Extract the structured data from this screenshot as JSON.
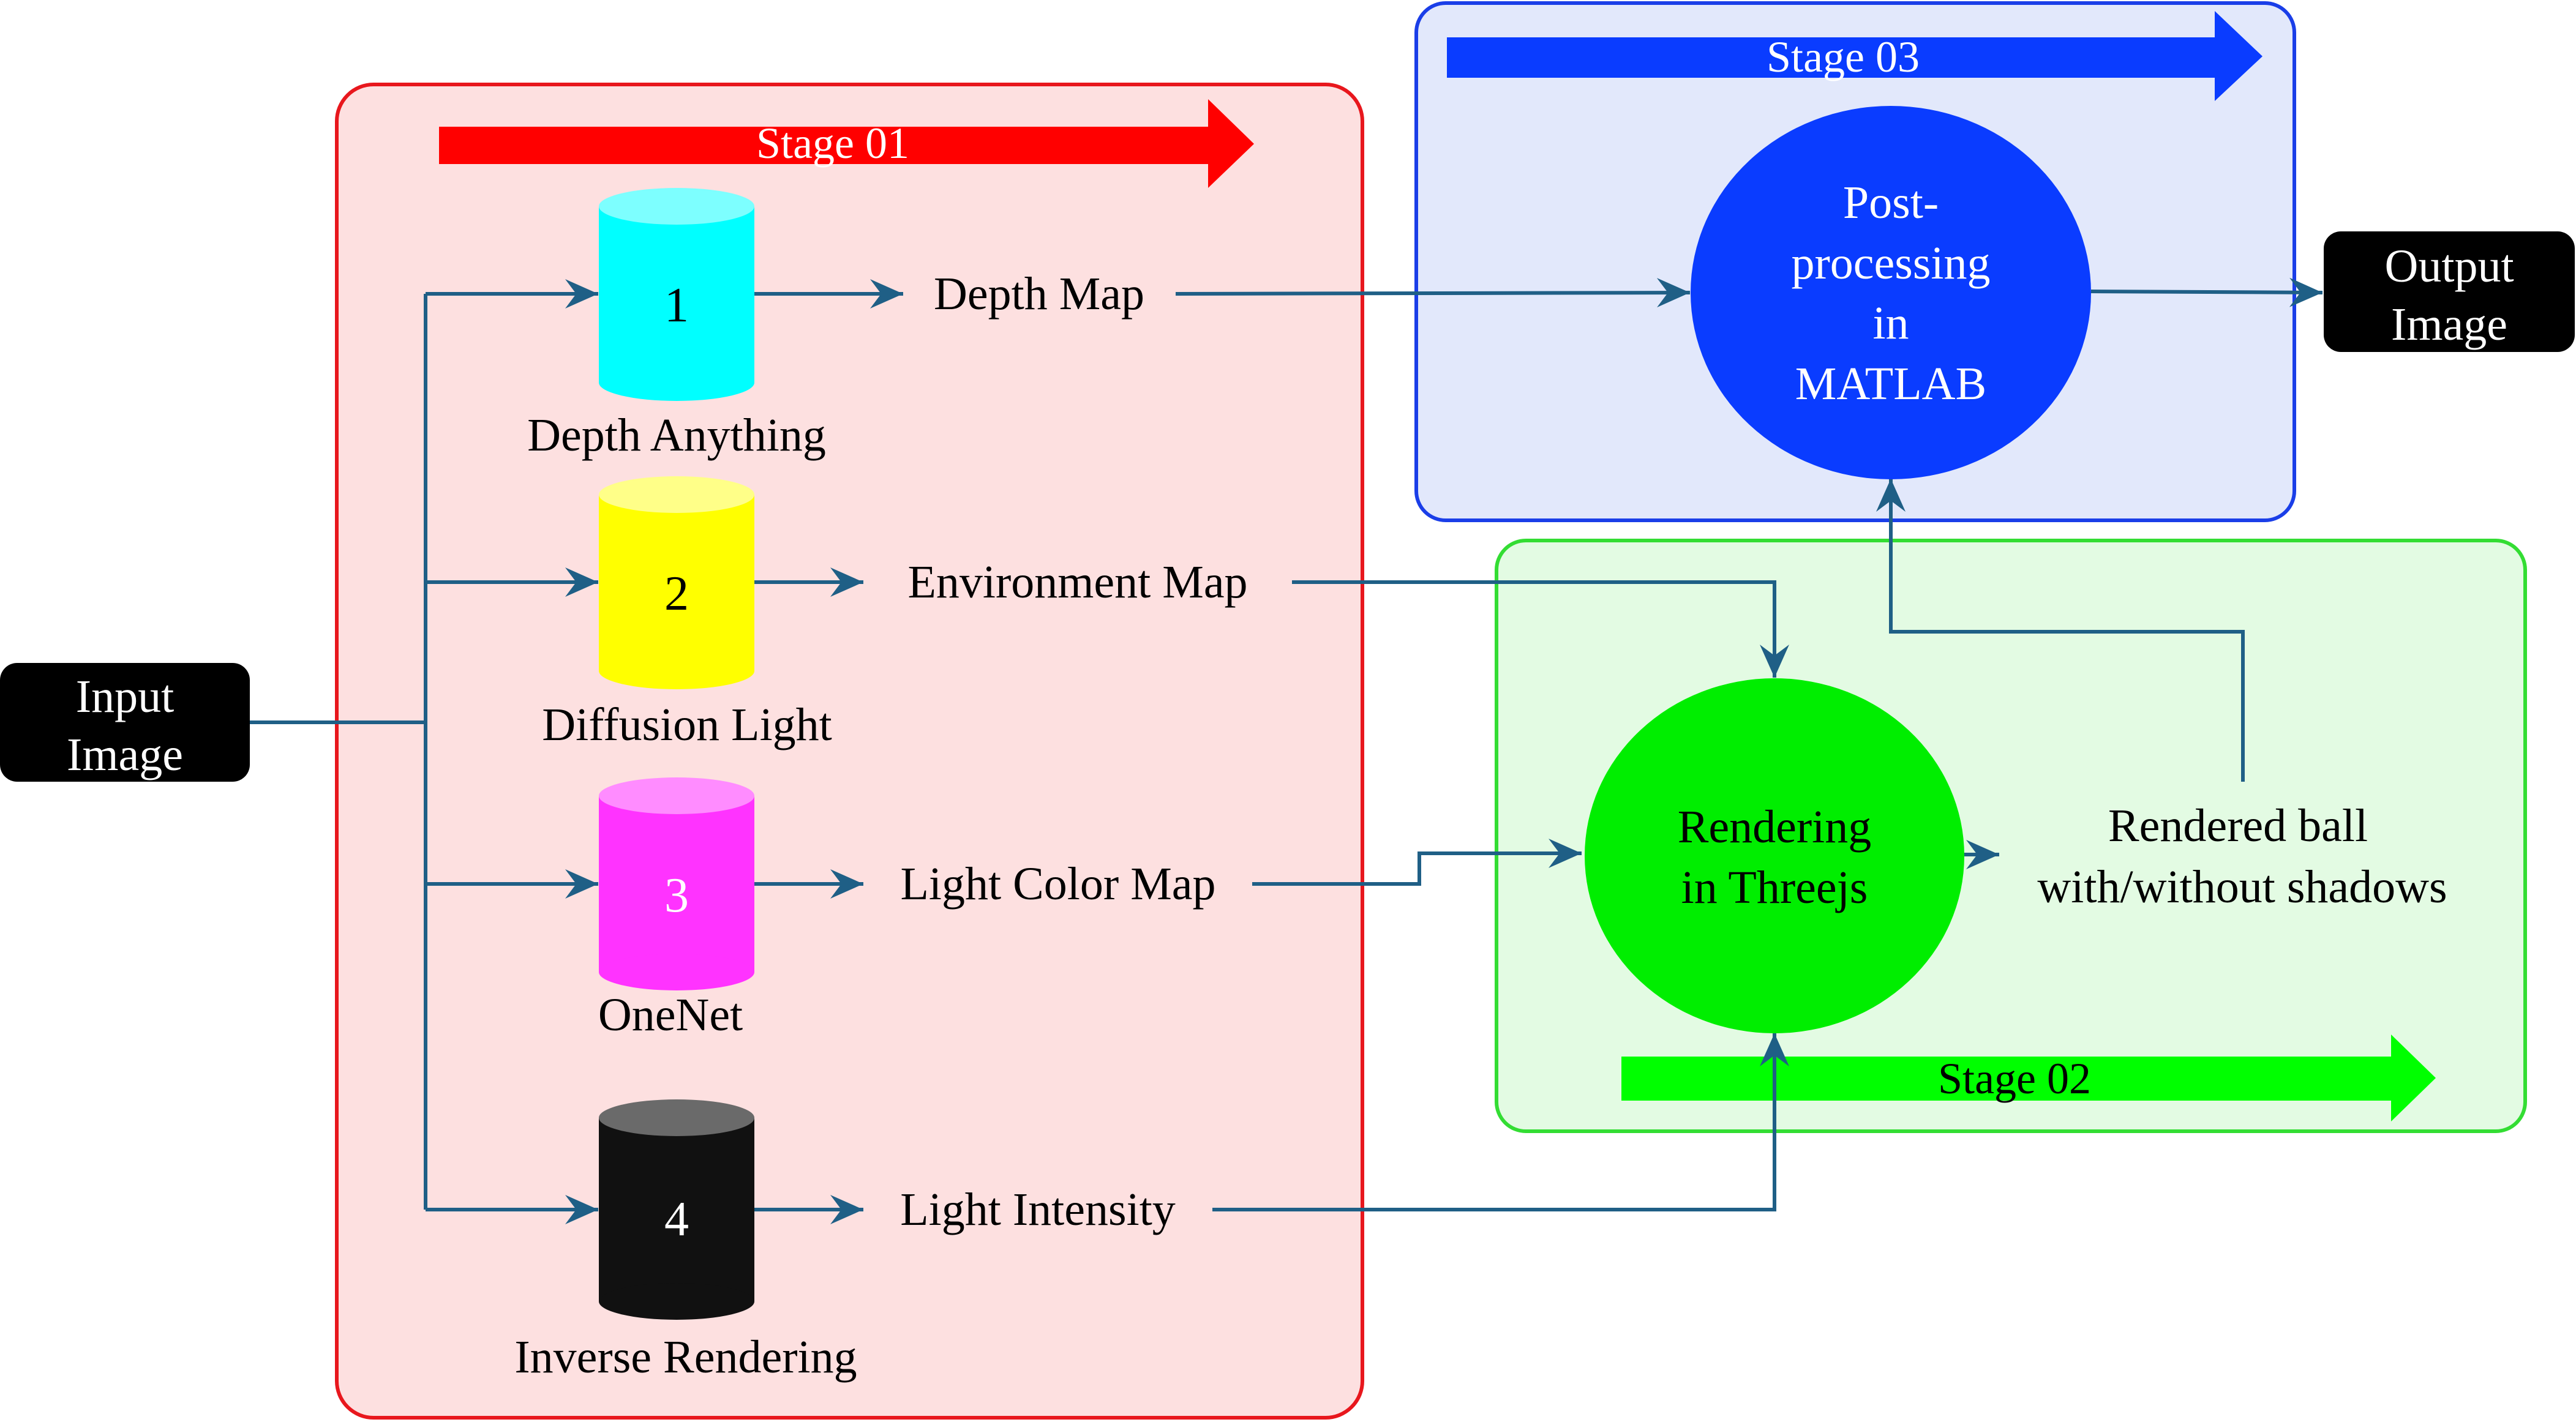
{
  "colors": {
    "stage01_fill": "#fde0e0",
    "stage01_border": "#e8171d",
    "stage01_arrow": "#ff0000",
    "stage02_fill": "#e3fbe3",
    "stage02_border": "#33dd33",
    "stage02_arrow": "#00ff00",
    "stage03_fill": "#e2e8fb",
    "stage03_border": "#1a3ee8",
    "stage03_arrow": "#0a3cff",
    "connector": "#1f5f86",
    "model1": "#00ffff",
    "model2": "#ffff00",
    "model3": "#ff33ff",
    "model4": "#111111",
    "postprocess_circle": "#0a3cff",
    "render_circle": "#00ee00"
  },
  "input": {
    "line1": "Input",
    "line2": "Image"
  },
  "output": {
    "line1": "Output",
    "line2": "Image"
  },
  "stages": {
    "s1": {
      "label": "Stage 01"
    },
    "s2": {
      "label": "Stage 02"
    },
    "s3": {
      "label": "Stage 03"
    }
  },
  "models": [
    {
      "number": "1",
      "name": "Depth Anything",
      "output": "Depth Map"
    },
    {
      "number": "2",
      "name": "Diffusion Light",
      "output": "Environment Map"
    },
    {
      "number": "3",
      "name": "OneNet",
      "output": "Light Color Map"
    },
    {
      "number": "4",
      "name": "Inverse Rendering",
      "output": "Light Intensity"
    }
  ],
  "render": {
    "line1": "Rendering",
    "line2": "in Threejs"
  },
  "rendered_ball": {
    "line1": "Rendered ball",
    "line2": "with/without shadows"
  },
  "postprocess": {
    "line1": "Post-",
    "line2": "processing",
    "line3": "in",
    "line4": "MATLAB"
  }
}
